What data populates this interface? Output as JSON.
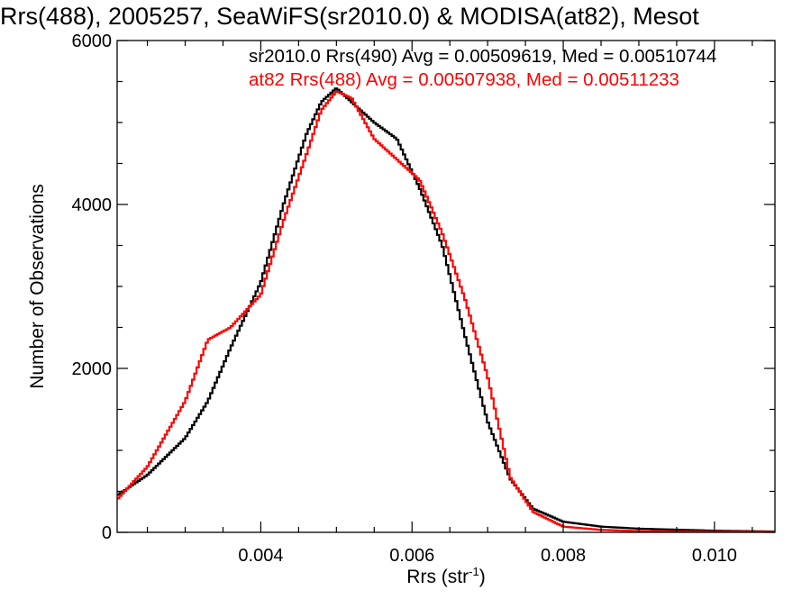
{
  "chart_data": {
    "type": "line",
    "step": true,
    "title": "Rrs(488), 2005257, SeaWiFS(sr2010.0) & MODISA(at82), Mesot",
    "xlabel": "Rrs (str",
    "xlabel_sup": "-1",
    "xlabel_end": ")",
    "ylabel": "Number of Observations",
    "xlim": [
      0.0021,
      0.0108
    ],
    "ylim": [
      0,
      6000
    ],
    "x_ticks": [
      {
        "value": 0.004,
        "label": "0.004"
      },
      {
        "value": 0.006,
        "label": "0.006"
      },
      {
        "value": 0.008,
        "label": "0.008"
      },
      {
        "value": 0.01,
        "label": "0.010"
      }
    ],
    "y_ticks": [
      {
        "value": 0,
        "label": "0"
      },
      {
        "value": 2000,
        "label": "2000"
      },
      {
        "value": 4000,
        "label": "4000"
      },
      {
        "value": 6000,
        "label": "6000"
      }
    ],
    "x_minor_step": 0.0005,
    "y_minor_step": 500,
    "legend_position": "top-right",
    "series": [
      {
        "name": "sr2010.0 Rrs(490) Avg = 0.00509619, Med = 0.00510744",
        "color": "#000000",
        "x": [
          0.0021,
          0.0025,
          0.003,
          0.0033,
          0.0036,
          0.004,
          0.0043,
          0.0046,
          0.0048,
          0.005,
          0.0052,
          0.0055,
          0.0058,
          0.0061,
          0.0064,
          0.0067,
          0.007,
          0.0073,
          0.0076,
          0.008,
          0.0085,
          0.009,
          0.01,
          0.0108
        ],
        "y": [
          450,
          700,
          1150,
          1600,
          2250,
          3050,
          4000,
          4850,
          5250,
          5420,
          5250,
          5000,
          4800,
          4200,
          3500,
          2400,
          1350,
          650,
          290,
          130,
          70,
          45,
          20,
          10
        ]
      },
      {
        "name": "at82 Rrs(488) Avg = 0.00507938, Med = 0.00511233",
        "color": "#ff0000",
        "x": [
          0.0021,
          0.0025,
          0.003,
          0.0033,
          0.0036,
          0.004,
          0.0043,
          0.0046,
          0.0048,
          0.005,
          0.0052,
          0.0055,
          0.0058,
          0.0061,
          0.0064,
          0.0067,
          0.007,
          0.0073,
          0.0076,
          0.008,
          0.0085,
          0.009,
          0.01,
          0.0108
        ],
        "y": [
          400,
          800,
          1600,
          2350,
          2500,
          2900,
          3800,
          4600,
          5150,
          5380,
          5300,
          4800,
          4550,
          4300,
          3650,
          2850,
          1900,
          670,
          250,
          70,
          30,
          15,
          8,
          5
        ]
      }
    ]
  }
}
